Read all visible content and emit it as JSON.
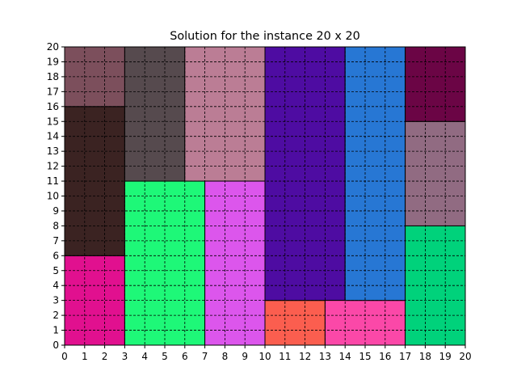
{
  "chart_data": {
    "type": "rectangle-packing",
    "title": "Solution for the instance 20 x 20",
    "xlim": [
      0,
      20
    ],
    "ylim": [
      0,
      20
    ],
    "x_ticks": [
      "0",
      "1",
      "2",
      "3",
      "4",
      "5",
      "6",
      "7",
      "8",
      "9",
      "10",
      "11",
      "12",
      "13",
      "14",
      "15",
      "16",
      "17",
      "18",
      "19",
      "20"
    ],
    "y_ticks": [
      "0",
      "1",
      "2",
      "3",
      "4",
      "5",
      "6",
      "7",
      "8",
      "9",
      "10",
      "11",
      "12",
      "13",
      "14",
      "15",
      "16",
      "17",
      "18",
      "19",
      "20"
    ],
    "grid": true,
    "grid_style": "dashed",
    "rectangles": [
      {
        "x": 0,
        "y": 0,
        "w": 3,
        "h": 6,
        "color": "#e1108f"
      },
      {
        "x": 0,
        "y": 6,
        "w": 3,
        "h": 10,
        "color": "#3b2322"
      },
      {
        "x": 0,
        "y": 16,
        "w": 3,
        "h": 4,
        "color": "#7c4f5c"
      },
      {
        "x": 3,
        "y": 0,
        "w": 4,
        "h": 11,
        "color": "#1ef878"
      },
      {
        "x": 3,
        "y": 11,
        "w": 3,
        "h": 9,
        "color": "#564a4e"
      },
      {
        "x": 6,
        "y": 11,
        "w": 4,
        "h": 9,
        "color": "#bb7d95"
      },
      {
        "x": 7,
        "y": 0,
        "w": 3,
        "h": 11,
        "color": "#dc56ec"
      },
      {
        "x": 10,
        "y": 0,
        "w": 3,
        "h": 3,
        "color": "#fb5e4f"
      },
      {
        "x": 10,
        "y": 3,
        "w": 4,
        "h": 17,
        "color": "#4e0ca2"
      },
      {
        "x": 13,
        "y": 0,
        "w": 4,
        "h": 3,
        "color": "#fb48a8"
      },
      {
        "x": 14,
        "y": 3,
        "w": 3,
        "h": 17,
        "color": "#2777d4"
      },
      {
        "x": 17,
        "y": 0,
        "w": 3,
        "h": 8,
        "color": "#00d27b"
      },
      {
        "x": 17,
        "y": 8,
        "w": 3,
        "h": 7,
        "color": "#916b82"
      },
      {
        "x": 17,
        "y": 15,
        "w": 3,
        "h": 5,
        "color": "#6b0545"
      }
    ]
  }
}
